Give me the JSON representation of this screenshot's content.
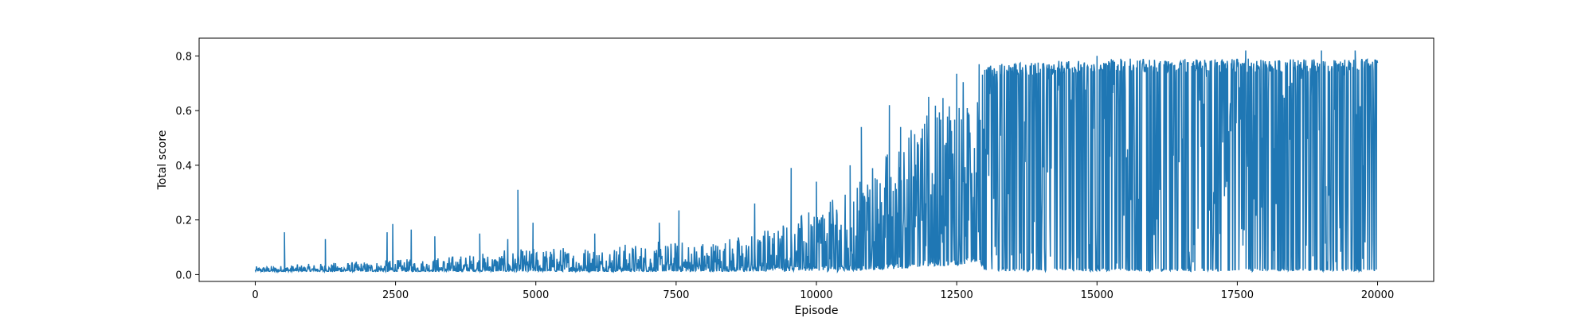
{
  "chart_data": {
    "type": "line",
    "title": "",
    "xlabel": "Episode",
    "ylabel": "Total score",
    "xlim": [
      -1000,
      21000
    ],
    "ylim": [
      -0.025,
      0.865
    ],
    "x_ticks": [
      0,
      2500,
      5000,
      7500,
      10000,
      12500,
      15000,
      17500,
      20000
    ],
    "x_tick_labels": [
      "0",
      "2500",
      "5000",
      "7500",
      "10000",
      "12500",
      "15000",
      "17500",
      "20000"
    ],
    "y_ticks": [
      0.0,
      0.2,
      0.4,
      0.6,
      0.8
    ],
    "y_tick_labels": [
      "0.0",
      "0.2",
      "0.4",
      "0.6",
      "0.8"
    ],
    "grid": false,
    "legend": "none",
    "series": [
      {
        "color": "#1f77b4",
        "x_start": 0,
        "x_end": 20000,
        "envelope": {
          "x": [
            0,
            1000,
            2000,
            3000,
            4000,
            5000,
            6000,
            7000,
            8000,
            9000,
            9500,
            10000,
            10500,
            11000,
            11500,
            12000,
            12500,
            12900,
            13000,
            13500,
            14000,
            15000,
            16000,
            17000,
            18000,
            19000,
            20000
          ],
          "upper": [
            0.03,
            0.04,
            0.05,
            0.06,
            0.08,
            0.1,
            0.11,
            0.12,
            0.13,
            0.16,
            0.2,
            0.24,
            0.3,
            0.4,
            0.5,
            0.6,
            0.7,
            0.75,
            0.76,
            0.78,
            0.78,
            0.79,
            0.79,
            0.79,
            0.79,
            0.79,
            0.79
          ],
          "lower": [
            0.012,
            0.012,
            0.012,
            0.012,
            0.012,
            0.012,
            0.012,
            0.012,
            0.012,
            0.012,
            0.012,
            0.012,
            0.012,
            0.015,
            0.02,
            0.03,
            0.03,
            0.05,
            0.015,
            0.012,
            0.012,
            0.012,
            0.012,
            0.012,
            0.012,
            0.012,
            0.012
          ]
        },
        "peaks": [
          {
            "x": 520,
            "y": 0.155
          },
          {
            "x": 1250,
            "y": 0.13
          },
          {
            "x": 2350,
            "y": 0.155
          },
          {
            "x": 2450,
            "y": 0.185
          },
          {
            "x": 2780,
            "y": 0.165
          },
          {
            "x": 3200,
            "y": 0.14
          },
          {
            "x": 4000,
            "y": 0.15
          },
          {
            "x": 4500,
            "y": 0.13
          },
          {
            "x": 4680,
            "y": 0.31
          },
          {
            "x": 4950,
            "y": 0.19
          },
          {
            "x": 6050,
            "y": 0.15
          },
          {
            "x": 7200,
            "y": 0.19
          },
          {
            "x": 7550,
            "y": 0.235
          },
          {
            "x": 8900,
            "y": 0.26
          },
          {
            "x": 9550,
            "y": 0.39
          },
          {
            "x": 10000,
            "y": 0.34
          },
          {
            "x": 10600,
            "y": 0.4
          },
          {
            "x": 10800,
            "y": 0.54
          },
          {
            "x": 11300,
            "y": 0.62
          },
          {
            "x": 11500,
            "y": 0.54
          },
          {
            "x": 12000,
            "y": 0.65
          },
          {
            "x": 12500,
            "y": 0.735
          },
          {
            "x": 12900,
            "y": 0.77
          },
          {
            "x": 13500,
            "y": 0.76
          },
          {
            "x": 15000,
            "y": 0.8
          },
          {
            "x": 17650,
            "y": 0.82
          },
          {
            "x": 19000,
            "y": 0.82
          },
          {
            "x": 19600,
            "y": 0.82
          }
        ]
      }
    ]
  }
}
